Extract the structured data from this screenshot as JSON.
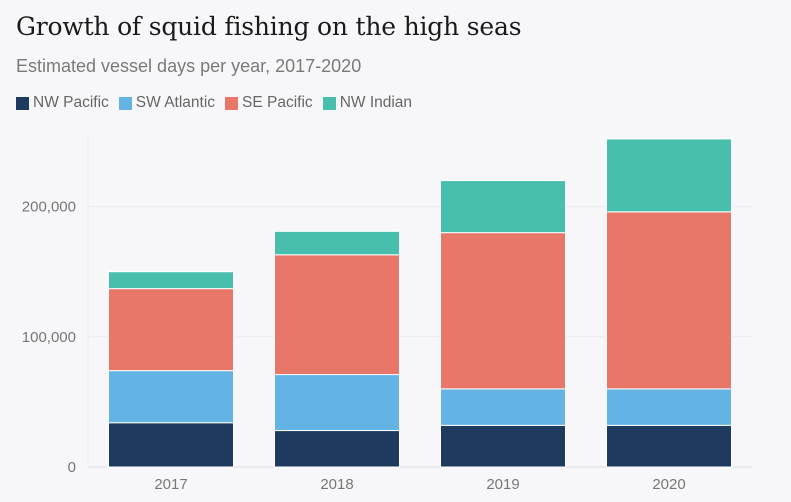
{
  "chart_data": {
    "type": "bar",
    "stacked": true,
    "title": "Growth of squid fishing on the high seas",
    "subtitle": "Estimated vessel days per year, 2017-2020",
    "categories": [
      "2017",
      "2018",
      "2019",
      "2020"
    ],
    "series": [
      {
        "name": "NW Pacific",
        "color": "#1f3a5f",
        "values": [
          34000,
          28000,
          32000,
          32000
        ]
      },
      {
        "name": "SW Atlantic",
        "color": "#63b3e4",
        "values": [
          40000,
          43000,
          28000,
          28000
        ]
      },
      {
        "name": "SE Pacific",
        "color": "#e8776a",
        "values": [
          63000,
          92000,
          120000,
          136000
        ]
      },
      {
        "name": "NW Indian",
        "color": "#47bfac",
        "values": [
          13000,
          18000,
          40000,
          56000
        ]
      }
    ],
    "y_ticks": [
      "0",
      "100,000",
      "200,000"
    ],
    "y_tick_values": [
      0,
      100000,
      200000
    ],
    "ylim": [
      0,
      255000
    ],
    "grid": true,
    "legend_position": "top-left"
  }
}
